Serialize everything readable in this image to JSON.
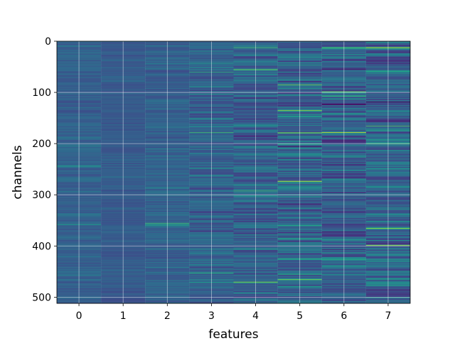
{
  "chart_data": {
    "type": "heatmap",
    "title": "",
    "xlabel": "features",
    "ylabel": "channels",
    "x_categories": [
      0,
      1,
      2,
      3,
      4,
      5,
      6,
      7
    ],
    "x_tick_labels": [
      "0",
      "1",
      "2",
      "3",
      "4",
      "5",
      "6",
      "7"
    ],
    "n_rows": 512,
    "ylim": [
      512,
      0
    ],
    "y_tick_values": [
      0,
      100,
      200,
      300,
      400,
      500
    ],
    "y_tick_labels": [
      "0",
      "100",
      "200",
      "300",
      "400",
      "500"
    ],
    "colormap": "viridis",
    "colormap_stops": [
      "#440154",
      "#482878",
      "#3e4a89",
      "#31688e",
      "#26828e",
      "#1f9e89",
      "#35b779",
      "#6ece58",
      "#b5de2b",
      "#fde725"
    ],
    "grid": true,
    "grid_color": "#ffffff",
    "column_value_ranges": [
      [
        0.2,
        0.45
      ],
      [
        0.2,
        0.4
      ],
      [
        0.18,
        0.48
      ],
      [
        0.1,
        0.6
      ],
      [
        0.05,
        0.65
      ],
      [
        0.0,
        0.75
      ],
      [
        0.0,
        0.7
      ],
      [
        0.0,
        0.75
      ]
    ],
    "notable_cells": [
      {
        "column": 0,
        "row": 243,
        "value": 0.55
      },
      {
        "column": 0,
        "row": 357,
        "value": 0.55
      },
      {
        "column": 2,
        "row": 355,
        "value": 0.7
      },
      {
        "column": 2,
        "row": 358,
        "value": 0.6
      },
      {
        "column": 3,
        "row": 60,
        "value": 0.65
      },
      {
        "column": 3,
        "row": 178,
        "value": 0.7
      },
      {
        "column": 3,
        "row": 452,
        "value": 0.65
      },
      {
        "column": 4,
        "row": 12,
        "value": 0.7
      },
      {
        "column": 4,
        "row": 55,
        "value": 0.8
      },
      {
        "column": 4,
        "row": 470,
        "value": 0.85
      },
      {
        "column": 4,
        "row": 292,
        "value": 0.7
      },
      {
        "column": 5,
        "row": 85,
        "value": 0.8
      },
      {
        "column": 5,
        "row": 135,
        "value": 0.85
      },
      {
        "column": 5,
        "row": 178,
        "value": 0.75
      },
      {
        "column": 5,
        "row": 273,
        "value": 0.95
      },
      {
        "column": 5,
        "row": 205,
        "value": 0.02
      },
      {
        "column": 5,
        "row": 465,
        "value": 0.8
      },
      {
        "column": 6,
        "row": 178,
        "value": 0.95
      },
      {
        "column": 6,
        "row": 98,
        "value": 0.75
      },
      {
        "column": 6,
        "row": 12,
        "value": 0.7
      },
      {
        "column": 7,
        "row": 12,
        "value": 0.9
      },
      {
        "column": 7,
        "row": 165,
        "value": 0.75
      },
      {
        "column": 7,
        "row": 200,
        "value": 0.7
      },
      {
        "column": 7,
        "row": 365,
        "value": 0.85
      },
      {
        "column": 7,
        "row": 398,
        "value": 0.9
      },
      {
        "column": 7,
        "row": 118,
        "value": 0.0
      }
    ]
  }
}
